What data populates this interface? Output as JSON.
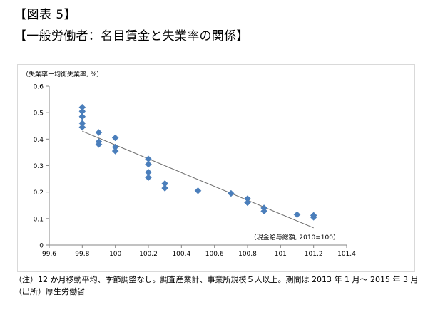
{
  "header": {
    "figure_label": "【図表 5】",
    "title": "【一般労働者：名目賃金と失業率の関係】"
  },
  "notes": {
    "note": "（注）12 か月移動平均、季節調整なし。調査産業計、事業所規模５人以上。期間は 2013 年 1 月～ 2015 年 3 月",
    "source": "（出所）厚生労働省"
  },
  "colors": {
    "marker": "#4a7ebb",
    "trendline": "#6d6d6d",
    "axis": "#868686"
  },
  "chart_data": {
    "type": "scatter",
    "title": "",
    "ylabel": "（失業率ー均衡失業率, %）",
    "xlabel": "（現金給与総額, 2010=100）",
    "xlim": [
      99.6,
      101.4
    ],
    "ylim": [
      0,
      0.6
    ],
    "x_ticks": [
      99.6,
      99.8,
      100,
      100.2,
      100.4,
      100.6,
      100.8,
      101,
      101.2,
      101.4
    ],
    "x_tick_labels": [
      "99.6",
      "99.8",
      "100",
      "100.2",
      "100.4",
      "100.6",
      "100.8",
      "101",
      "101.2",
      "101.4"
    ],
    "y_ticks": [
      0,
      0.1,
      0.2,
      0.3,
      0.4,
      0.5,
      0.6
    ],
    "y_tick_labels": [
      "0",
      "0.1",
      "0.2",
      "0.3",
      "0.4",
      "0.5",
      "0.6"
    ],
    "grid": false,
    "points": [
      {
        "x": 99.8,
        "y": 0.52
      },
      {
        "x": 99.8,
        "y": 0.505
      },
      {
        "x": 99.8,
        "y": 0.485
      },
      {
        "x": 99.8,
        "y": 0.46
      },
      {
        "x": 99.8,
        "y": 0.445
      },
      {
        "x": 99.9,
        "y": 0.425
      },
      {
        "x": 99.9,
        "y": 0.39
      },
      {
        "x": 99.9,
        "y": 0.38
      },
      {
        "x": 100.0,
        "y": 0.405
      },
      {
        "x": 100.0,
        "y": 0.37
      },
      {
        "x": 100.0,
        "y": 0.355
      },
      {
        "x": 100.2,
        "y": 0.325
      },
      {
        "x": 100.2,
        "y": 0.305
      },
      {
        "x": 100.2,
        "y": 0.275
      },
      {
        "x": 100.2,
        "y": 0.255
      },
      {
        "x": 100.3,
        "y": 0.232
      },
      {
        "x": 100.3,
        "y": 0.215
      },
      {
        "x": 100.5,
        "y": 0.205
      },
      {
        "x": 100.7,
        "y": 0.195
      },
      {
        "x": 100.8,
        "y": 0.175
      },
      {
        "x": 100.8,
        "y": 0.16
      },
      {
        "x": 100.9,
        "y": 0.14
      },
      {
        "x": 100.9,
        "y": 0.128
      },
      {
        "x": 101.1,
        "y": 0.115
      },
      {
        "x": 101.2,
        "y": 0.112
      },
      {
        "x": 101.2,
        "y": 0.105
      }
    ],
    "trendline": {
      "x": [
        99.8,
        101.2
      ],
      "y": [
        0.43,
        0.065
      ]
    }
  }
}
